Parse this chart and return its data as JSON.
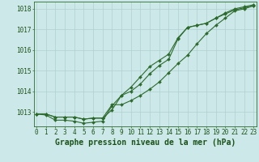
{
  "title": "Graphe pression niveau de la mer (hPa)",
  "hours": [
    0,
    1,
    2,
    3,
    4,
    5,
    6,
    7,
    8,
    9,
    10,
    11,
    12,
    13,
    14,
    15,
    16,
    17,
    18,
    19,
    20,
    21,
    22,
    23
  ],
  "line1": [
    1012.9,
    1012.9,
    1012.75,
    1012.75,
    1012.75,
    1012.65,
    1012.7,
    1012.7,
    1013.1,
    1013.8,
    1014.0,
    1014.35,
    1014.85,
    1015.25,
    1015.55,
    1016.55,
    1017.1,
    1017.2,
    1017.3,
    1017.55,
    1017.75,
    1017.95,
    1018.05,
    1018.15
  ],
  "line2": [
    1012.9,
    1012.85,
    1012.6,
    1012.6,
    1012.55,
    1012.45,
    1012.5,
    1012.55,
    1013.3,
    1013.8,
    1014.2,
    1014.7,
    1015.2,
    1015.5,
    1015.8,
    1016.6,
    1017.1,
    1017.2,
    1017.3,
    1017.55,
    1017.8,
    1018.0,
    1018.1,
    1018.2
  ],
  "line3": [
    1012.9,
    1012.9,
    1012.75,
    1012.75,
    1012.75,
    1012.65,
    1012.7,
    1012.7,
    1013.35,
    1013.35,
    1013.55,
    1013.8,
    1014.1,
    1014.45,
    1014.9,
    1015.35,
    1015.75,
    1016.3,
    1016.8,
    1017.2,
    1017.55,
    1017.9,
    1018.0,
    1018.15
  ],
  "bg_color": "#cce8e8",
  "line_color": "#2d6b2d",
  "grid_color": "#aacaca",
  "grid_minor_color": "#bbdada",
  "yticks": [
    1013,
    1014,
    1015,
    1016,
    1017,
    1018
  ],
  "ylim": [
    1012.3,
    1018.35
  ],
  "xlim": [
    -0.3,
    23.3
  ],
  "label_color": "#1a5218",
  "title_fontsize": 7.0,
  "tick_fontsize": 5.5,
  "markersize": 2.0,
  "linewidth": 0.8
}
